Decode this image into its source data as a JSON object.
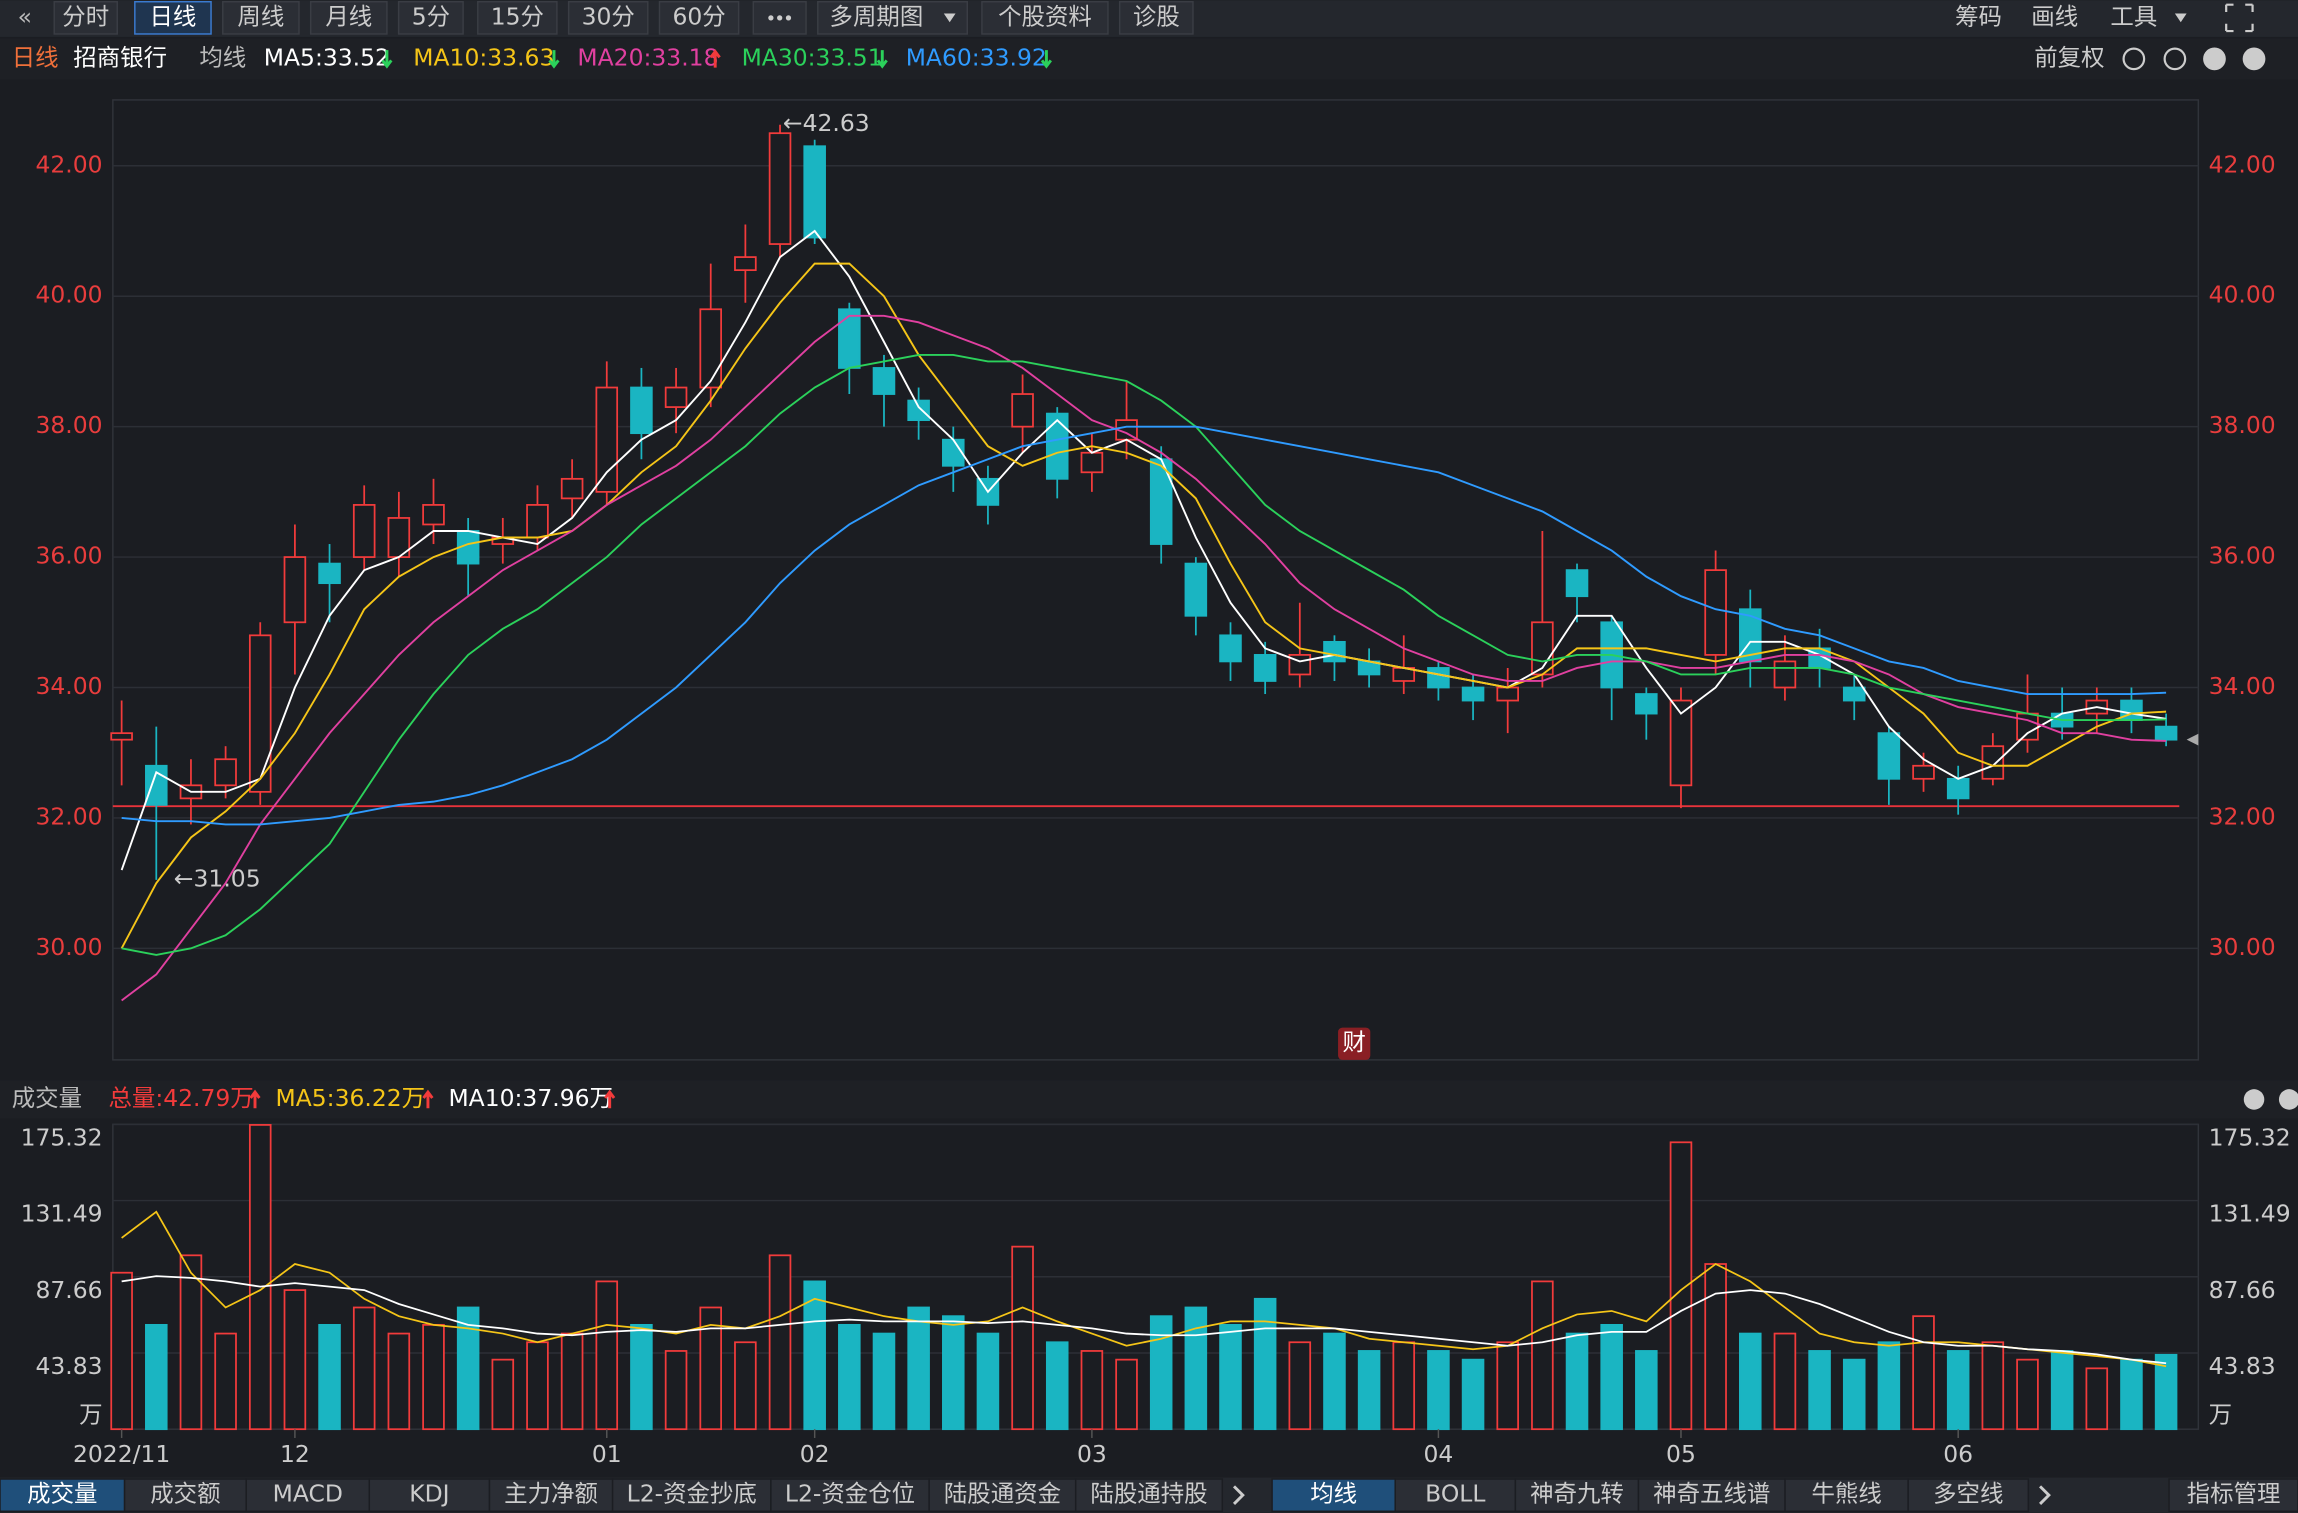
{
  "toolbar": {
    "left": [
      "分时",
      "日线",
      "周线",
      "月线",
      "5分",
      "15分",
      "30分",
      "60分",
      "多周期图",
      "个股资料",
      "诊股"
    ],
    "right": [
      "筹码",
      "画线",
      "工具"
    ]
  },
  "header": {
    "period": "日线",
    "stock": "招商银行",
    "ma_label": "均线",
    "adjust": "前复权"
  },
  "volume_header": {
    "title": "成交量"
  },
  "badge": "财",
  "bottom_tabs": {
    "left": [
      "成交量",
      "成交额",
      "MACD",
      "KDJ",
      "主力净额",
      "L2-资金抄底",
      "L2-资金仓位",
      "陆股通资金",
      "陆股通持股"
    ],
    "right": [
      "均线",
      "BOLL",
      "神奇九转",
      "神奇五线谱",
      "牛熊线",
      "多空线",
      "指标管理"
    ]
  },
  "chart_data": [
    {
      "type": "candlestick",
      "up_color": "#f23b3b",
      "down_color": "#1ab5c2",
      "ylim": [
        28.29,
        43.01
      ],
      "yticks": [
        {
          "value": 30,
          "label": "30.00"
        },
        {
          "value": 32,
          "label": "32.00"
        },
        {
          "value": 34,
          "label": "34.00"
        },
        {
          "value": 36,
          "label": "36.00"
        },
        {
          "value": 38,
          "label": "38.00"
        },
        {
          "value": 40,
          "label": "40.00"
        },
        {
          "value": 42,
          "label": "42.00"
        }
      ],
      "grid": true,
      "reference_line": 32.18,
      "high_label": "←42.63",
      "low_label": "←31.05",
      "open": [
        33.2,
        32.8,
        32.3,
        32.5,
        32.4,
        35.0,
        35.9,
        36.0,
        36.0,
        36.5,
        36.4,
        36.2,
        36.3,
        36.9,
        37.0,
        38.6,
        38.3,
        38.6,
        40.4,
        40.8,
        42.3,
        39.8,
        38.9,
        38.4,
        37.8,
        37.2,
        38.0,
        38.2,
        37.3,
        37.8,
        37.5,
        35.9,
        34.8,
        34.5,
        34.2,
        34.7,
        34.4,
        34.1,
        34.3,
        34.0,
        33.8,
        34.2,
        35.8,
        35.0,
        33.9,
        32.5,
        34.5,
        35.2,
        34.0,
        34.6,
        34.0,
        33.3,
        32.6,
        32.6,
        32.6,
        33.2,
        33.6,
        33.6,
        33.8,
        33.4
      ],
      "high": [
        33.8,
        33.4,
        32.9,
        33.1,
        35.0,
        36.5,
        36.2,
        37.1,
        37.0,
        37.2,
        36.6,
        36.6,
        37.1,
        37.5,
        39.0,
        38.9,
        38.9,
        40.5,
        41.1,
        42.63,
        42.4,
        39.9,
        39.1,
        38.6,
        38.0,
        37.4,
        38.8,
        38.3,
        37.9,
        38.7,
        37.7,
        36.0,
        35.0,
        34.7,
        35.3,
        34.8,
        34.6,
        34.8,
        34.4,
        34.2,
        34.3,
        36.4,
        35.9,
        35.1,
        34.0,
        34.0,
        36.1,
        35.5,
        34.8,
        34.9,
        34.2,
        33.4,
        33.0,
        32.8,
        33.3,
        34.2,
        34.0,
        34.0,
        34.0,
        33.6
      ],
      "low": [
        32.5,
        31.05,
        31.9,
        32.3,
        32.2,
        34.2,
        35.0,
        35.8,
        35.7,
        36.2,
        35.4,
        35.9,
        36.1,
        36.6,
        36.8,
        37.5,
        37.9,
        38.3,
        39.9,
        40.6,
        40.8,
        38.5,
        38.0,
        37.8,
        37.0,
        36.5,
        37.6,
        36.9,
        37.0,
        37.5,
        35.9,
        34.8,
        34.1,
        33.9,
        34.0,
        34.1,
        34.0,
        33.9,
        33.8,
        33.5,
        33.3,
        34.0,
        35.0,
        33.5,
        33.2,
        32.15,
        34.2,
        34.0,
        33.8,
        34.0,
        33.5,
        32.2,
        32.4,
        32.05,
        32.5,
        33.0,
        33.2,
        33.3,
        33.3,
        33.1
      ],
      "close": [
        33.3,
        32.2,
        32.5,
        32.9,
        34.8,
        36.0,
        35.6,
        36.8,
        36.6,
        36.8,
        35.9,
        36.3,
        36.8,
        37.2,
        38.6,
        37.9,
        38.6,
        39.8,
        40.6,
        42.5,
        40.9,
        38.9,
        38.5,
        38.1,
        37.4,
        36.8,
        38.5,
        37.2,
        37.6,
        38.1,
        36.2,
        35.1,
        34.4,
        34.1,
        34.5,
        34.4,
        34.2,
        34.3,
        34.0,
        33.8,
        34.0,
        35.0,
        35.4,
        34.0,
        33.6,
        33.8,
        35.8,
        34.4,
        34.4,
        34.3,
        33.8,
        32.6,
        32.8,
        32.3,
        33.1,
        33.6,
        33.4,
        33.8,
        33.5,
        33.2
      ],
      "series": [
        {
          "name": "MA5:33.52",
          "color": "#ffffff",
          "trend": "down",
          "values": [
            31.2,
            32.7,
            32.4,
            32.4,
            32.6,
            34.0,
            35.1,
            35.8,
            36.0,
            36.4,
            36.4,
            36.3,
            36.2,
            36.6,
            37.3,
            37.8,
            38.1,
            38.7,
            39.6,
            40.6,
            41.0,
            40.3,
            39.3,
            38.3,
            37.8,
            37.0,
            37.6,
            38.1,
            37.6,
            37.8,
            37.5,
            36.3,
            35.3,
            34.6,
            34.4,
            34.5,
            34.4,
            34.3,
            34.2,
            34.1,
            34.0,
            34.3,
            35.1,
            35.1,
            34.3,
            33.6,
            34.0,
            34.7,
            34.7,
            34.5,
            34.2,
            33.4,
            32.9,
            32.6,
            32.8,
            33.3,
            33.6,
            33.7,
            33.6,
            33.52
          ]
        },
        {
          "name": "MA10:33.63",
          "color": "#f5c518",
          "trend": "down",
          "values": [
            30.0,
            31.0,
            31.7,
            32.1,
            32.6,
            33.3,
            34.2,
            35.2,
            35.7,
            36.0,
            36.2,
            36.3,
            36.3,
            36.4,
            36.8,
            37.3,
            37.7,
            38.4,
            39.2,
            39.9,
            40.5,
            40.5,
            40.0,
            39.1,
            38.4,
            37.7,
            37.4,
            37.6,
            37.7,
            37.6,
            37.4,
            36.9,
            35.9,
            35.0,
            34.6,
            34.5,
            34.4,
            34.3,
            34.2,
            34.1,
            34.0,
            34.2,
            34.6,
            34.6,
            34.6,
            34.5,
            34.4,
            34.5,
            34.6,
            34.6,
            34.4,
            34.0,
            33.6,
            33.0,
            32.8,
            32.8,
            33.1,
            33.4,
            33.6,
            33.63
          ]
        },
        {
          "name": "MA20:33.18",
          "color": "#e040a0",
          "trend": "up",
          "values": [
            29.2,
            29.6,
            30.3,
            31.0,
            31.9,
            32.6,
            33.3,
            33.9,
            34.5,
            35.0,
            35.4,
            35.8,
            36.1,
            36.4,
            36.8,
            37.1,
            37.4,
            37.8,
            38.3,
            38.8,
            39.3,
            39.7,
            39.7,
            39.6,
            39.4,
            39.2,
            38.9,
            38.5,
            38.1,
            37.9,
            37.6,
            37.2,
            36.7,
            36.2,
            35.6,
            35.2,
            34.9,
            34.6,
            34.4,
            34.2,
            34.1,
            34.1,
            34.3,
            34.4,
            34.4,
            34.3,
            34.3,
            34.4,
            34.5,
            34.5,
            34.4,
            34.2,
            33.9,
            33.7,
            33.6,
            33.5,
            33.3,
            33.3,
            33.2,
            33.18
          ]
        },
        {
          "name": "MA30:33.51",
          "color": "#2bd15b",
          "trend": "down",
          "values": [
            30.0,
            29.9,
            30.0,
            30.2,
            30.6,
            31.1,
            31.6,
            32.4,
            33.2,
            33.9,
            34.5,
            34.9,
            35.2,
            35.6,
            36.0,
            36.5,
            36.9,
            37.3,
            37.7,
            38.2,
            38.6,
            38.9,
            39.0,
            39.1,
            39.1,
            39.0,
            39.0,
            38.9,
            38.8,
            38.7,
            38.4,
            38.0,
            37.4,
            36.8,
            36.4,
            36.1,
            35.8,
            35.5,
            35.1,
            34.8,
            34.5,
            34.4,
            34.5,
            34.5,
            34.4,
            34.2,
            34.2,
            34.3,
            34.3,
            34.3,
            34.2,
            34.0,
            33.9,
            33.8,
            33.7,
            33.6,
            33.5,
            33.5,
            33.5,
            33.51
          ]
        },
        {
          "name": "MA60:33.92",
          "color": "#2f9bff",
          "trend": "down",
          "values": [
            32.0,
            31.95,
            31.95,
            31.9,
            31.9,
            31.95,
            32.0,
            32.1,
            32.2,
            32.25,
            32.35,
            32.5,
            32.7,
            32.9,
            33.2,
            33.6,
            34.0,
            34.5,
            35.0,
            35.6,
            36.1,
            36.5,
            36.8,
            37.1,
            37.3,
            37.5,
            37.7,
            37.8,
            37.9,
            38.0,
            38.0,
            38.0,
            37.9,
            37.8,
            37.7,
            37.6,
            37.5,
            37.4,
            37.3,
            37.1,
            36.9,
            36.7,
            36.4,
            36.1,
            35.7,
            35.4,
            35.2,
            35.1,
            34.9,
            34.8,
            34.6,
            34.4,
            34.3,
            34.1,
            34.0,
            33.9,
            33.9,
            33.9,
            33.9,
            33.92
          ]
        }
      ]
    },
    {
      "type": "bar",
      "total_label": "总量:42.79万",
      "total_color": "#f23b3b",
      "y_unit": "万",
      "ylim": [
        0,
        175.32
      ],
      "yticks": [
        43.83,
        87.66,
        131.49,
        175.32
      ],
      "categories": [
        "2022/11",
        null,
        null,
        null,
        null,
        "12",
        null,
        null,
        null,
        null,
        null,
        null,
        null,
        null,
        "01",
        null,
        null,
        null,
        null,
        null,
        "02",
        null,
        null,
        null,
        null,
        null,
        null,
        null,
        "03",
        null,
        null,
        null,
        null,
        null,
        null,
        null,
        null,
        null,
        "04",
        null,
        null,
        null,
        null,
        null,
        null,
        "05",
        null,
        null,
        null,
        null,
        null,
        null,
        null,
        "06",
        null,
        null,
        null,
        null,
        null,
        null
      ],
      "values": [
        90,
        60,
        100,
        55,
        175,
        80,
        60,
        70,
        55,
        60,
        70,
        40,
        50,
        55,
        85,
        60,
        45,
        70,
        50,
        100,
        85,
        60,
        55,
        70,
        65,
        55,
        105,
        50,
        45,
        40,
        65,
        70,
        60,
        75,
        50,
        55,
        45,
        50,
        45,
        40,
        50,
        85,
        55,
        60,
        45,
        165,
        95,
        55,
        55,
        45,
        40,
        50,
        65,
        45,
        50,
        40,
        45,
        35,
        40,
        42.79
      ],
      "series": [
        {
          "name": "MA5:36.22万",
          "color": "#f5c518",
          "trend": "up",
          "values": [
            110,
            125,
            90,
            70,
            80,
            95,
            90,
            75,
            65,
            60,
            58,
            55,
            50,
            55,
            60,
            58,
            55,
            60,
            58,
            65,
            75,
            70,
            65,
            62,
            60,
            62,
            70,
            62,
            55,
            48,
            52,
            58,
            62,
            62,
            60,
            58,
            52,
            50,
            48,
            46,
            48,
            58,
            66,
            68,
            62,
            80,
            95,
            85,
            70,
            55,
            50,
            48,
            50,
            50,
            48,
            46,
            44,
            42,
            40,
            36.22
          ]
        },
        {
          "name": "MA10:37.96万",
          "color": "#ffffff",
          "trend": "up",
          "values": [
            85,
            88,
            87,
            85,
            82,
            84,
            82,
            80,
            72,
            66,
            60,
            58,
            55,
            54,
            56,
            57,
            56,
            58,
            58,
            60,
            62,
            63,
            62,
            62,
            62,
            61,
            62,
            60,
            58,
            55,
            54,
            54,
            56,
            58,
            58,
            58,
            56,
            54,
            52,
            50,
            48,
            50,
            54,
            56,
            56,
            68,
            78,
            80,
            78,
            72,
            64,
            56,
            50,
            48,
            48,
            46,
            45,
            43,
            40,
            37.96
          ]
        }
      ]
    }
  ]
}
